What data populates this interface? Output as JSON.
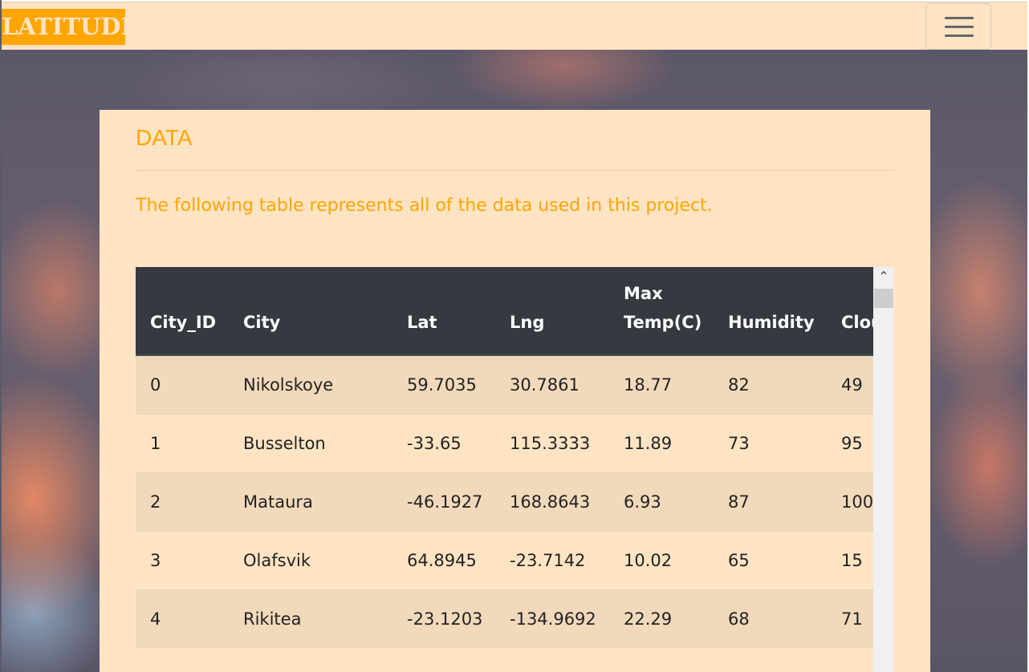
{
  "navbar": {
    "brand": "LATITUDE",
    "menu_icon": "hamburger-menu-icon"
  },
  "card": {
    "title": "DATA",
    "description": "The following table represents all of the data used in this project."
  },
  "table": {
    "headers": [
      "City_ID",
      "City",
      "Lat",
      "Lng",
      "Max Temp(C)",
      "Humidity",
      "Cloudiness"
    ],
    "rows": [
      [
        "0",
        "Nikolskoye",
        "59.7035",
        "30.7861",
        "18.77",
        "82",
        "49"
      ],
      [
        "1",
        "Busselton",
        "-33.65",
        "115.3333",
        "11.89",
        "73",
        "95"
      ],
      [
        "2",
        "Mataura",
        "-46.1927",
        "168.8643",
        "6.93",
        "87",
        "100"
      ],
      [
        "3",
        "Olafsvik",
        "64.8945",
        "-23.7142",
        "10.02",
        "65",
        "15"
      ],
      [
        "4",
        "Rikitea",
        "-23.1203",
        "-134.9692",
        "22.29",
        "68",
        "71"
      ]
    ]
  },
  "scrollbar": {
    "up_arrow": "chevron-up-icon"
  },
  "colors": {
    "navbar_bg": "#ffe4c4",
    "brand_bg": "#ffa500",
    "accent_text": "#ffa500",
    "table_header_bg": "#343a40",
    "row_striped": "#f2d9bb"
  }
}
